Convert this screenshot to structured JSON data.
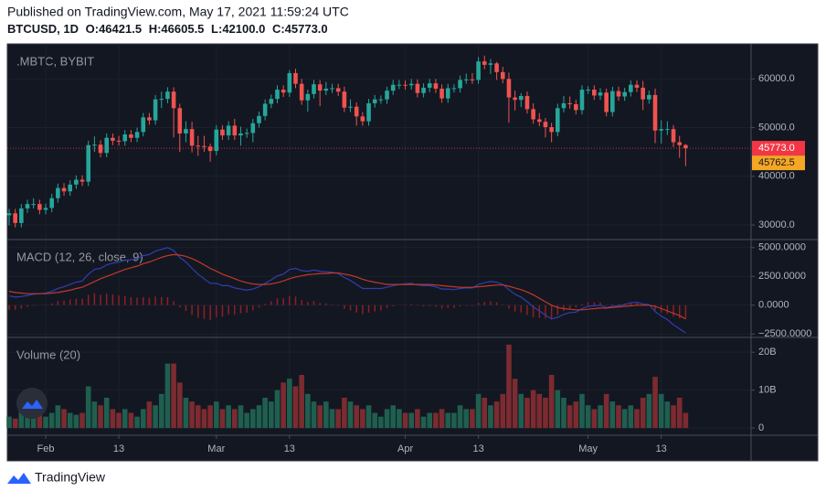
{
  "header": {
    "published": "Published on TradingView.com, May 17, 2021 11:59:24 UTC",
    "symbol": "BTCUSD, 1D",
    "ohlc": [
      "O:46421.5",
      "H:46605.5",
      "L:42100.0",
      "C:45773.0"
    ]
  },
  "footer": {
    "brand": "TradingView"
  },
  "chart_data": [
    {
      "type": "candlestick",
      "title": ".MBTC, BYBIT",
      "up_color": "#26a69a",
      "down_color": "#ef5350",
      "open": [
        32000,
        32400,
        30400,
        33400,
        34300,
        34300,
        33100,
        33500,
        35500,
        37600,
        36900,
        38300,
        39300,
        38900,
        46400,
        46500,
        44800,
        47900,
        47300,
        47200,
        48600,
        47900,
        49100,
        52100,
        51500,
        55800,
        55900,
        57400,
        54000,
        48800,
        49700,
        46300,
        46200,
        46100,
        45200,
        49600,
        48400,
        50400,
        48400,
        48800,
        48900,
        50900,
        52400,
        54900,
        55900,
        57800,
        57200,
        61200,
        59000,
        55600,
        56900,
        58900,
        57600,
        58000,
        58100,
        57400,
        54100,
        54300,
        52300,
        51300,
        55000,
        55800,
        55800,
        57600,
        58800,
        58800,
        58700,
        59000,
        57100,
        58200,
        59100,
        58000,
        56000,
        58100,
        58100,
        59800,
        59900,
        59800,
        63600,
        62900,
        63200,
        61400,
        60000,
        56200,
        55700,
        56500,
        53800,
        51700,
        51200,
        50100,
        49100,
        54000,
        55000,
        54800,
        53600,
        57800,
        57800,
        56600,
        57200,
        53200,
        57500,
        56400,
        57300,
        58800,
        58200,
        55800,
        56700,
        49400,
        49700,
        49700,
        47000,
        46421.5
      ],
      "high": [
        33300,
        33300,
        34300,
        35200,
        35500,
        35200,
        34400,
        36400,
        38500,
        38600,
        39200,
        40200,
        40200,
        47300,
        48200,
        47400,
        48800,
        48800,
        48300,
        49500,
        49500,
        50000,
        53000,
        53000,
        56700,
        57400,
        58300,
        58300,
        54900,
        51300,
        51200,
        48300,
        48300,
        46700,
        50500,
        50500,
        51300,
        51800,
        50200,
        49800,
        51800,
        53300,
        55800,
        56800,
        58700,
        58700,
        61800,
        62100,
        60000,
        57800,
        59800,
        59800,
        59400,
        59000,
        59000,
        58400,
        55800,
        55200,
        53200,
        55900,
        56700,
        56600,
        58400,
        59800,
        59800,
        59700,
        60000,
        59900,
        59100,
        60000,
        60000,
        58900,
        59000,
        58900,
        60700,
        61100,
        61200,
        64500,
        64800,
        64100,
        63500,
        62500,
        61300,
        57600,
        57100,
        57400,
        55000,
        53000,
        52000,
        51000,
        54900,
        56500,
        56400,
        55700,
        58700,
        58500,
        58700,
        58100,
        58000,
        58400,
        58400,
        58200,
        59700,
        59700,
        59600,
        57600,
        58000,
        51500,
        51300,
        50500,
        48300,
        46605.5
      ],
      "low": [
        29900,
        29500,
        29500,
        32500,
        33400,
        32200,
        32200,
        32600,
        34600,
        36000,
        36000,
        37400,
        38000,
        38000,
        45000,
        43900,
        43900,
        46400,
        46300,
        46300,
        47000,
        47000,
        48200,
        50600,
        50600,
        54000,
        55000,
        48000,
        45000,
        47000,
        44900,
        44200,
        45000,
        43000,
        44300,
        47500,
        47500,
        47500,
        46300,
        47900,
        47000,
        50000,
        51500,
        54000,
        55000,
        56300,
        56300,
        58100,
        54700,
        53300,
        56000,
        54400,
        56700,
        57100,
        56500,
        53200,
        53200,
        50400,
        50400,
        50400,
        54100,
        54900,
        54900,
        56700,
        57900,
        57800,
        57800,
        56200,
        56200,
        57300,
        57100,
        55100,
        55100,
        57200,
        57200,
        59000,
        59000,
        59000,
        62000,
        61000,
        59800,
        59100,
        51000,
        53500,
        54200,
        52900,
        50800,
        50300,
        48000,
        47000,
        48200,
        53100,
        53900,
        52700,
        52700,
        56900,
        55700,
        55700,
        52300,
        52300,
        55500,
        55500,
        56400,
        57300,
        53600,
        54900,
        46800,
        46700,
        48500,
        46000,
        43800,
        42100
      ],
      "close": [
        32400,
        30400,
        33400,
        34300,
        34300,
        33100,
        33500,
        35500,
        37600,
        36900,
        38300,
        39300,
        38900,
        46400,
        46500,
        44800,
        47900,
        47300,
        47200,
        48600,
        47900,
        49100,
        52100,
        51500,
        55800,
        55900,
        57400,
        54000,
        48800,
        49700,
        46300,
        46200,
        46100,
        45200,
        49600,
        48400,
        50400,
        48400,
        48800,
        48900,
        50900,
        52400,
        54900,
        55900,
        57800,
        57200,
        61200,
        59000,
        55600,
        56900,
        58900,
        57600,
        58000,
        58100,
        57400,
        54100,
        54300,
        52300,
        51300,
        55000,
        55800,
        55800,
        57600,
        58800,
        58800,
        58700,
        59000,
        57100,
        58200,
        59100,
        58000,
        56000,
        58100,
        58100,
        59800,
        59900,
        59800,
        63600,
        62900,
        63200,
        61400,
        60000,
        56200,
        55700,
        56500,
        53800,
        51700,
        51200,
        50100,
        49100,
        54000,
        55000,
        54800,
        53600,
        57800,
        57800,
        56600,
        57200,
        53200,
        57500,
        56400,
        57300,
        58800,
        58200,
        55800,
        56700,
        49400,
        49700,
        49700,
        47000,
        46400,
        45773
      ],
      "ylim": [
        27000,
        67200
      ],
      "yticks": [
        {
          "value": 30000,
          "label": "30000.0"
        },
        {
          "value": 40000,
          "label": "40000.0"
        },
        {
          "value": 50000,
          "label": "50000.0"
        },
        {
          "value": 60000,
          "label": "60000.0"
        }
      ],
      "xticks": [
        {
          "value": 6,
          "label": "Feb"
        },
        {
          "value": 18,
          "label": "13"
        },
        {
          "value": 34,
          "label": "Mar"
        },
        {
          "value": 46,
          "label": "13"
        },
        {
          "value": 65,
          "label": "Apr"
        },
        {
          "value": 77,
          "label": "13"
        },
        {
          "value": 95,
          "label": "May"
        },
        {
          "value": 107,
          "label": "13"
        }
      ],
      "last_price": {
        "value": 45773,
        "label": "45773.0",
        "color": "#f23645"
      },
      "mark_price": {
        "value": 45762.5,
        "label": "45762.5",
        "color": "#f5a623"
      },
      "grid": true
    },
    {
      "type": "macd",
      "title": "MACD (12, 26, close, 9)",
      "macd": {
        "color": "#2f3fae",
        "values": [
          800,
          700,
          750,
          850,
          950,
          1000,
          1050,
          1200,
          1450,
          1600,
          1800,
          2000,
          2100,
          2700,
          3100,
          3200,
          3500,
          3650,
          3750,
          3900,
          3950,
          4050,
          4300,
          4400,
          4700,
          4850,
          5000,
          4750,
          4150,
          3750,
          3200,
          2700,
          2300,
          1900,
          1900,
          1700,
          1700,
          1500,
          1400,
          1300,
          1400,
          1600,
          1900,
          2200,
          2550,
          2700,
          3100,
          3200,
          3000,
          2950,
          3050,
          2950,
          2900,
          2850,
          2750,
          2400,
          2150,
          1800,
          1450,
          1450,
          1450,
          1450,
          1550,
          1700,
          1800,
          1850,
          1900,
          1750,
          1700,
          1700,
          1600,
          1400,
          1400,
          1350,
          1450,
          1500,
          1500,
          1800,
          1950,
          2050,
          2000,
          1800,
          1350,
          950,
          700,
          300,
          -150,
          -500,
          -850,
          -1200,
          -1050,
          -800,
          -650,
          -600,
          -300,
          -100,
          -50,
          0,
          -200,
          -100,
          -50,
          50,
          200,
          250,
          100,
          50,
          -550,
          -950,
          -1250,
          -1700,
          -2050,
          -2400
        ]
      },
      "signal": {
        "color": "#c0392b",
        "values": [
          1200,
          1100,
          1050,
          1000,
          1000,
          1000,
          1000,
          1050,
          1100,
          1200,
          1300,
          1450,
          1550,
          1800,
          2050,
          2300,
          2500,
          2700,
          2900,
          3100,
          3250,
          3400,
          3600,
          3750,
          3950,
          4150,
          4300,
          4400,
          4350,
          4250,
          4050,
          3800,
          3500,
          3200,
          2950,
          2700,
          2500,
          2300,
          2100,
          1950,
          1850,
          1800,
          1800,
          1850,
          1950,
          2100,
          2300,
          2450,
          2550,
          2650,
          2700,
          2750,
          2750,
          2800,
          2800,
          2700,
          2600,
          2450,
          2250,
          2100,
          2000,
          1900,
          1800,
          1800,
          1800,
          1800,
          1800,
          1800,
          1800,
          1800,
          1750,
          1700,
          1650,
          1600,
          1550,
          1550,
          1550,
          1600,
          1650,
          1700,
          1750,
          1750,
          1650,
          1500,
          1350,
          1150,
          900,
          600,
          300,
          0,
          -200,
          -300,
          -350,
          -400,
          -400,
          -350,
          -300,
          -250,
          -250,
          -200,
          -150,
          -100,
          -50,
          0,
          0,
          0,
          -100,
          -300,
          -500,
          -700,
          -900,
          -1200
        ]
      },
      "histogram": {
        "color": "#8e1f24",
        "values": [
          -400,
          -400,
          -300,
          -150,
          -50,
          0,
          50,
          150,
          350,
          400,
          500,
          550,
          550,
          900,
          1050,
          900,
          1000,
          950,
          850,
          800,
          700,
          650,
          700,
          650,
          750,
          700,
          700,
          350,
          -200,
          -500,
          -850,
          -1100,
          -1200,
          -1300,
          -1050,
          -1000,
          -800,
          -800,
          -700,
          -650,
          -450,
          -200,
          100,
          350,
          600,
          600,
          800,
          750,
          450,
          300,
          350,
          200,
          150,
          50,
          -50,
          -300,
          -450,
          -650,
          -800,
          -650,
          -550,
          -450,
          -250,
          -100,
          0,
          50,
          100,
          -50,
          -100,
          -100,
          -150,
          -300,
          -250,
          -250,
          -100,
          -50,
          -50,
          200,
          300,
          350,
          250,
          50,
          -300,
          -550,
          -650,
          -850,
          -1050,
          -1100,
          -1150,
          -1200,
          -850,
          -500,
          -300,
          -200,
          100,
          250,
          250,
          250,
          50,
          100,
          100,
          150,
          250,
          250,
          100,
          50,
          -450,
          -650,
          -750,
          -1000,
          -1150,
          -1200
        ]
      },
      "ylim": [
        -2800,
        5700
      ],
      "yticks": [
        {
          "value": -2500,
          "label": "−2500.0000"
        },
        {
          "value": 0,
          "label": "0.0000"
        },
        {
          "value": 2500,
          "label": "2500.0000"
        },
        {
          "value": 5000,
          "label": "5000.0000"
        }
      ]
    },
    {
      "type": "volume",
      "title": "Volume (20)",
      "up_color": "#1f5f4f",
      "down_color": "#7c2b30",
      "values": [
        3,
        2.5,
        5,
        4,
        3,
        3.5,
        3,
        4,
        6,
        5,
        4,
        3.5,
        4,
        11,
        7,
        6,
        8,
        5,
        4,
        5,
        4,
        3,
        5,
        7,
        6,
        9,
        17,
        17,
        12,
        8,
        7,
        6,
        5,
        6,
        7,
        5,
        6,
        5,
        6,
        4,
        5,
        6,
        8,
        7,
        10,
        12,
        13,
        11,
        14,
        9,
        7,
        6,
        7,
        5,
        5,
        8,
        7,
        6,
        5,
        6,
        4,
        3,
        5,
        6,
        5,
        4,
        4,
        5,
        3,
        4,
        4,
        5,
        4,
        4,
        6,
        5,
        5,
        9,
        8,
        6,
        7,
        9,
        22,
        13,
        9,
        8,
        10,
        9,
        8,
        14,
        10,
        8,
        6,
        7,
        9,
        6,
        5,
        6,
        9,
        7,
        6,
        5,
        6,
        5,
        8,
        9,
        13.5,
        9,
        7,
        6,
        8,
        4
      ],
      "ylim": [
        -1.9,
        23.9
      ],
      "yticks": [
        0,
        {
          "value": 10,
          "label": "10B"
        },
        {
          "value": 20,
          "label": "20B"
        }
      ]
    }
  ]
}
